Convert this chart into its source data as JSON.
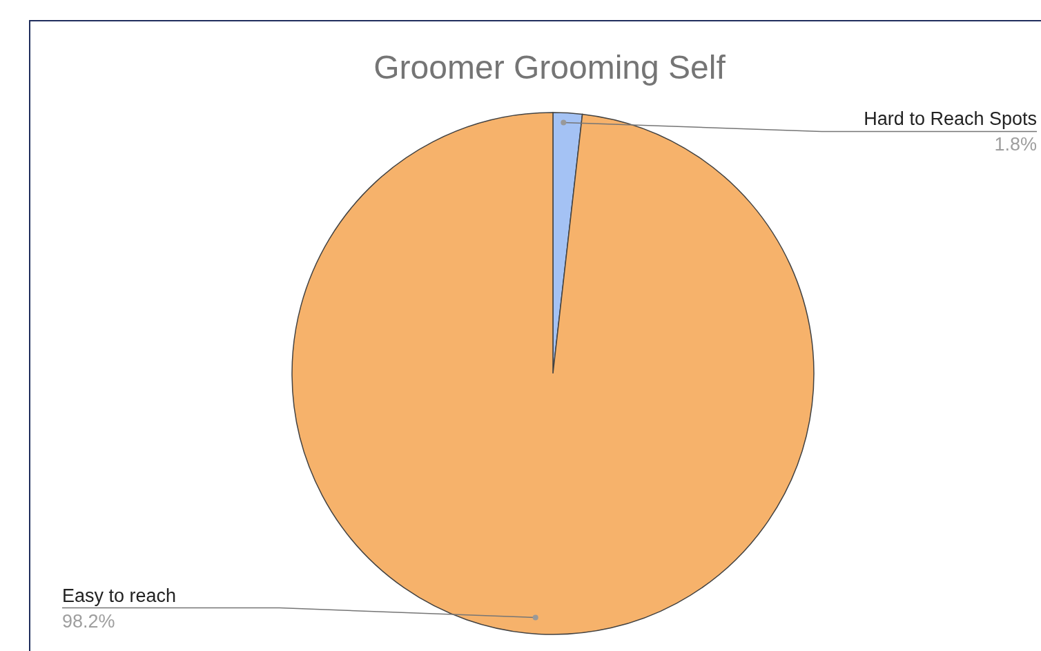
{
  "chart_data": {
    "type": "pie",
    "title": "Groomer Grooming Self",
    "categories": [
      "Hard to Reach Spots",
      "Easy to reach"
    ],
    "values": [
      1.8,
      98.2
    ],
    "colors": [
      "#a4c2f4",
      "#f6b26b"
    ],
    "value_labels": [
      "1.8%",
      "98.2%"
    ]
  }
}
